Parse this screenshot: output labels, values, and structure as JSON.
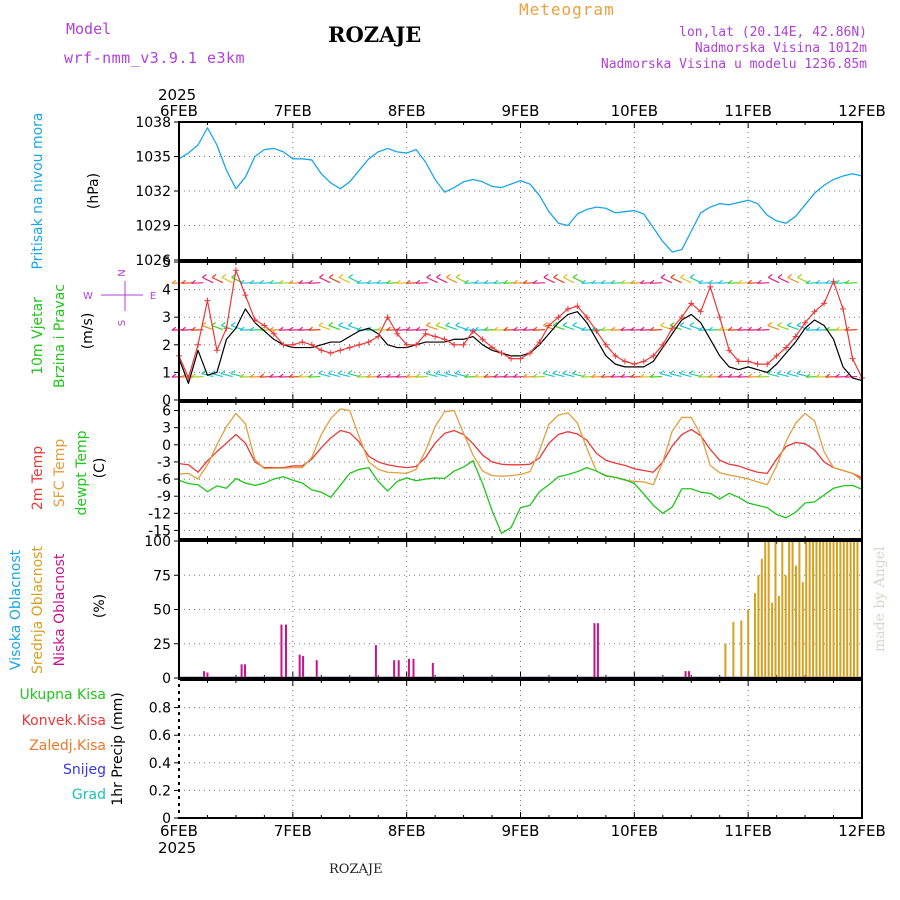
{
  "header": {
    "model_label": "Model",
    "model_name": "wrf-nmm_v3.9.1  e3km",
    "location": "ROZAJE",
    "product": "Meteogram",
    "coords": "lon,lat (20.14E, 42.86N)",
    "altitude": "Nadmorska Visina 1012m",
    "model_altitude": "Nadmorska Visina u modelu 1236.85m",
    "credit": "made by Angel",
    "footer_location": "ROZAJE"
  },
  "time_axis": {
    "year": "2025",
    "ticks": [
      "6FEB",
      "7FEB",
      "8FEB",
      "9FEB",
      "10FEB",
      "11FEB",
      "12FEB"
    ],
    "days": 6
  },
  "colors": {
    "pressure": "#1aa6e6",
    "wind_black": "#000000",
    "wind_red": "#e8393a",
    "temp2m": "#e8393a",
    "sfc": "#e0a040",
    "dew": "#22c41e",
    "cloud_high": "#1aa6e6",
    "cloud_mid": "#d6a020",
    "cloud_low": "#c8148c",
    "purple": "#b040d8",
    "orange": "#e8a040",
    "precip_total": "#22c41e",
    "precip_conv": "#e8393a",
    "precip_frz": "#f07828",
    "snow": "#3838e0",
    "hail": "#20c0b0"
  },
  "chart_data": [
    {
      "type": "line",
      "id": "pressure",
      "title": "Pritisak na nivou mora",
      "ylabel": "(hPa)",
      "ylim": [
        1026,
        1038
      ],
      "yticks": [
        1026,
        1029,
        1032,
        1035,
        1038
      ],
      "x_days": [
        0,
        0.083,
        0.167,
        0.25,
        0.333,
        0.417,
        0.5,
        0.583,
        0.667,
        0.75,
        0.833,
        0.917,
        1.0,
        1.083,
        1.167,
        1.25,
        1.333,
        1.417,
        1.5,
        1.583,
        1.667,
        1.75,
        1.833,
        1.917,
        2.0,
        2.083,
        2.167,
        2.25,
        2.333,
        2.417,
        2.5,
        2.583,
        2.667,
        2.75,
        2.833,
        2.917,
        3.0,
        3.083,
        3.167,
        3.25,
        3.333,
        3.417,
        3.5,
        3.583,
        3.667,
        3.75,
        3.833,
        3.917,
        4.0,
        4.083,
        4.167,
        4.25,
        4.333,
        4.417,
        4.5,
        4.583,
        4.667,
        4.75,
        4.833,
        4.917,
        5.0,
        5.083,
        5.167,
        5.25,
        5.333,
        5.417,
        5.5,
        5.583,
        5.667,
        5.75,
        5.833,
        5.917,
        6.0
      ],
      "series": [
        {
          "name": "MSLP",
          "values": [
            1034.8,
            1035.3,
            1036.0,
            1037.5,
            1036.0,
            1033.8,
            1032.2,
            1033.2,
            1035.0,
            1035.6,
            1035.7,
            1035.4,
            1034.8,
            1034.8,
            1034.7,
            1033.5,
            1032.7,
            1032.2,
            1032.8,
            1033.8,
            1034.8,
            1035.4,
            1035.7,
            1035.4,
            1035.3,
            1035.6,
            1034.5,
            1033.0,
            1031.9,
            1032.3,
            1032.8,
            1033.0,
            1032.8,
            1032.4,
            1032.3,
            1032.6,
            1032.9,
            1032.6,
            1031.6,
            1030.2,
            1029.2,
            1029.0,
            1030.0,
            1030.4,
            1030.6,
            1030.5,
            1030.1,
            1030.2,
            1030.3,
            1030.0,
            1028.8,
            1027.6,
            1026.7,
            1026.9,
            1028.5,
            1030.1,
            1030.6,
            1030.9,
            1030.8,
            1031.0,
            1031.2,
            1030.9,
            1029.9,
            1029.4,
            1029.2,
            1029.8,
            1030.8,
            1031.8,
            1032.5,
            1033.0,
            1033.3,
            1033.5,
            1033.3
          ]
        }
      ]
    },
    {
      "type": "line",
      "id": "wind",
      "title": [
        "10m Vjetar",
        "Brzina i Pravac"
      ],
      "ylabel": "(m/s)",
      "ylim": [
        0,
        5
      ],
      "yticks": [
        0,
        1,
        2,
        3,
        4,
        5
      ],
      "compass_labels": [
        "N",
        "W",
        "E",
        "S"
      ],
      "x_days": [
        0,
        0.083,
        0.167,
        0.25,
        0.333,
        0.417,
        0.5,
        0.583,
        0.667,
        0.75,
        0.833,
        0.917,
        1.0,
        1.083,
        1.167,
        1.25,
        1.333,
        1.417,
        1.5,
        1.583,
        1.667,
        1.75,
        1.833,
        1.917,
        2.0,
        2.083,
        2.167,
        2.25,
        2.333,
        2.417,
        2.5,
        2.583,
        2.667,
        2.75,
        2.833,
        2.917,
        3.0,
        3.083,
        3.167,
        3.25,
        3.333,
        3.417,
        3.5,
        3.583,
        3.667,
        3.75,
        3.833,
        3.917,
        4.0,
        4.083,
        4.167,
        4.25,
        4.333,
        4.417,
        4.5,
        4.583,
        4.667,
        4.75,
        4.833,
        4.917,
        5.0,
        5.083,
        5.167,
        5.25,
        5.333,
        5.417,
        5.5,
        5.583,
        5.667,
        5.75,
        5.833,
        5.917,
        6.0
      ],
      "series": [
        {
          "name": "mean",
          "values": [
            1.5,
            0.6,
            1.8,
            0.9,
            1.0,
            2.2,
            2.6,
            3.3,
            2.8,
            2.5,
            2.2,
            2.0,
            1.9,
            1.9,
            1.9,
            2.0,
            2.1,
            2.1,
            2.3,
            2.5,
            2.6,
            2.4,
            2.0,
            1.9,
            1.9,
            2.0,
            2.1,
            2.1,
            2.1,
            2.2,
            2.2,
            2.3,
            2.0,
            1.8,
            1.7,
            1.6,
            1.6,
            1.7,
            2.0,
            2.4,
            2.8,
            3.1,
            3.2,
            2.8,
            2.2,
            1.6,
            1.3,
            1.2,
            1.2,
            1.2,
            1.4,
            1.9,
            2.4,
            2.9,
            3.1,
            2.8,
            2.2,
            1.6,
            1.2,
            1.1,
            1.2,
            1.1,
            1.0,
            1.3,
            1.7,
            2.1,
            2.6,
            2.9,
            2.7,
            2.2,
            1.2,
            0.8,
            0.7
          ]
        },
        {
          "name": "gust",
          "values": [
            1.6,
            0.8,
            2.0,
            3.6,
            1.8,
            2.6,
            4.7,
            3.8,
            2.9,
            2.7,
            2.4,
            2.0,
            2.0,
            2.1,
            2.0,
            1.8,
            1.7,
            1.8,
            1.9,
            2.0,
            2.1,
            2.3,
            3.0,
            2.4,
            2.0,
            2.0,
            2.4,
            2.3,
            2.2,
            2.0,
            2.0,
            2.5,
            2.2,
            1.9,
            1.7,
            1.5,
            1.5,
            1.7,
            2.1,
            2.7,
            3.0,
            3.3,
            3.4,
            3.0,
            2.5,
            2.0,
            1.6,
            1.4,
            1.3,
            1.4,
            1.6,
            2.0,
            2.6,
            3.0,
            3.5,
            3.2,
            4.1,
            3.0,
            1.8,
            1.4,
            1.4,
            1.3,
            1.3,
            1.6,
            1.9,
            2.3,
            2.8,
            3.2,
            3.5,
            4.3,
            3.3,
            1.5,
            0.8
          ]
        }
      ]
    },
    {
      "type": "line",
      "id": "temperature",
      "title": [
        "2m Temp",
        "SFC Temp",
        "dewpt Temp"
      ],
      "ylabel": "(C)",
      "ylim": [
        -16.5,
        7.5
      ],
      "yticks": [
        -15,
        -12,
        -9,
        -6,
        -3,
        0,
        3,
        6
      ],
      "x_days": [
        0,
        0.083,
        0.167,
        0.25,
        0.333,
        0.417,
        0.5,
        0.583,
        0.667,
        0.75,
        0.833,
        0.917,
        1.0,
        1.083,
        1.167,
        1.25,
        1.333,
        1.417,
        1.5,
        1.583,
        1.667,
        1.75,
        1.833,
        1.917,
        2.0,
        2.083,
        2.167,
        2.25,
        2.333,
        2.417,
        2.5,
        2.583,
        2.667,
        2.75,
        2.833,
        2.917,
        3.0,
        3.083,
        3.167,
        3.25,
        3.333,
        3.417,
        3.5,
        3.583,
        3.667,
        3.75,
        3.833,
        3.917,
        4.0,
        4.083,
        4.167,
        4.25,
        4.333,
        4.417,
        4.5,
        4.583,
        4.667,
        4.75,
        4.833,
        4.917,
        5.0,
        5.083,
        5.167,
        5.25,
        5.333,
        5.417,
        5.5,
        5.583,
        5.667,
        5.75,
        5.833,
        5.917,
        6.0
      ],
      "series": [
        {
          "name": "2m Temp",
          "values": [
            -3.3,
            -3.5,
            -4.8,
            -2.8,
            -1.2,
            0.3,
            1.8,
            0.3,
            -3.0,
            -4.0,
            -4.0,
            -4.0,
            -3.7,
            -3.7,
            -2.5,
            -0.5,
            1.2,
            2.5,
            2.1,
            0.5,
            -2.0,
            -3.0,
            -3.5,
            -3.8,
            -4.0,
            -3.8,
            -2.2,
            0.3,
            2.0,
            2.5,
            1.8,
            0.2,
            -1.8,
            -3.0,
            -3.4,
            -3.5,
            -3.5,
            -3.4,
            -2.3,
            0.3,
            1.8,
            2.3,
            1.9,
            0.8,
            -1.5,
            -2.7,
            -3.2,
            -3.6,
            -4.2,
            -4.5,
            -4.8,
            -3.0,
            -0.2,
            1.8,
            2.7,
            1.6,
            -0.8,
            -2.7,
            -3.4,
            -3.7,
            -4.3,
            -4.8,
            -5.0,
            -2.5,
            -0.3,
            0.4,
            0.2,
            -0.9,
            -3.0,
            -4.0,
            -4.5,
            -5.0,
            -5.8
          ]
        },
        {
          "name": "SFC Temp",
          "values": [
            -5.1,
            -5.0,
            -6.0,
            -3.5,
            0.0,
            3.2,
            5.5,
            3.7,
            -2.6,
            -4.2,
            -4.1,
            -4.1,
            -4.0,
            -4.0,
            -2.2,
            1.8,
            4.6,
            6.3,
            6.0,
            1.4,
            -3.0,
            -4.3,
            -4.8,
            -4.9,
            -5.0,
            -4.3,
            -1.0,
            3.2,
            5.8,
            6.0,
            2.0,
            -1.8,
            -4.6,
            -5.4,
            -5.5,
            -5.4,
            -5.2,
            -4.7,
            -1.0,
            3.6,
            5.2,
            5.6,
            3.8,
            -0.6,
            -4.6,
            -5.5,
            -5.7,
            -6.2,
            -6.4,
            -6.5,
            -7.0,
            -3.0,
            2.4,
            4.8,
            4.8,
            1.8,
            -3.6,
            -4.9,
            -5.3,
            -5.6,
            -6.0,
            -6.5,
            -7.0,
            -3.7,
            0.6,
            3.8,
            5.5,
            4.2,
            -1.2,
            -4.0,
            -4.5,
            -5.0,
            -6.2
          ]
        },
        {
          "name": "dewpt Temp",
          "values": [
            -6.2,
            -6.8,
            -7.0,
            -8.2,
            -7.2,
            -7.6,
            -5.9,
            -6.7,
            -7.1,
            -6.7,
            -6.0,
            -5.6,
            -6.2,
            -6.7,
            -7.9,
            -8.3,
            -9.2,
            -7.1,
            -5.0,
            -4.3,
            -4.0,
            -6.4,
            -8.1,
            -6.4,
            -5.8,
            -6.3,
            -6.0,
            -5.8,
            -5.9,
            -4.6,
            -3.9,
            -2.8,
            -6.8,
            -11.5,
            -15.5,
            -14.5,
            -11.0,
            -10.6,
            -8.2,
            -7.0,
            -5.6,
            -5.2,
            -4.7,
            -4.0,
            -4.6,
            -5.4,
            -5.7,
            -6.1,
            -6.8,
            -8.6,
            -10.6,
            -12.0,
            -10.9,
            -7.7,
            -7.7,
            -8.3,
            -8.5,
            -9.5,
            -8.5,
            -9.2,
            -10.2,
            -10.6,
            -11.0,
            -12.2,
            -12.8,
            -11.8,
            -10.2,
            -10.0,
            -8.8,
            -7.6,
            -7.2,
            -7.1,
            -7.8
          ]
        }
      ]
    },
    {
      "type": "bar",
      "id": "cloud",
      "title": [
        "Visoka Oblacnost",
        "Srednja Oblacnost",
        "Niska Oblacnost"
      ],
      "ylabel": "(%)",
      "ylim": [
        0,
        100
      ],
      "yticks": [
        0,
        25,
        50,
        75,
        100
      ],
      "series": [
        {
          "name": "Niska Oblacnost",
          "x_days": [
            0.22,
            0.25,
            0.55,
            0.58,
            0.9,
            0.94,
            1.06,
            1.09,
            1.21,
            1.73,
            1.89,
            1.93,
            2.02,
            2.06,
            2.23,
            3.65,
            3.68,
            4.45,
            4.48
          ],
          "values": [
            5,
            4,
            10,
            10,
            39,
            39,
            17,
            16,
            13,
            24,
            13,
            13,
            14,
            14,
            11,
            40,
            40,
            5,
            5
          ]
        },
        {
          "name": "Srednja Oblacnost",
          "x_days": [
            4.8,
            4.87,
            4.94,
            5.0,
            5.06,
            5.09,
            5.12,
            5.15,
            5.18,
            5.21,
            5.24,
            5.27,
            5.3,
            5.33,
            5.36,
            5.39,
            5.42,
            5.45,
            5.48,
            5.51,
            5.54,
            5.57,
            5.6,
            5.63,
            5.66,
            5.69,
            5.72,
            5.75,
            5.78,
            5.81,
            5.84,
            5.87,
            5.9,
            5.93,
            5.96
          ],
          "values": [
            25,
            41,
            42,
            50,
            62,
            75,
            87,
            100,
            100,
            55,
            100,
            60,
            100,
            75,
            100,
            100,
            82,
            100,
            70,
            100,
            100,
            100,
            100,
            100,
            100,
            100,
            100,
            100,
            100,
            100,
            100,
            100,
            100,
            100,
            100
          ]
        },
        {
          "name": "Visoka Oblacnost",
          "x_days": [],
          "values": []
        }
      ]
    },
    {
      "type": "bar",
      "id": "precip",
      "title": [
        "Ukupna Kisa",
        "Konvek.Kisa",
        "Zaledj.Kisa",
        "Snijeg",
        "Grad"
      ],
      "ylabel": "1hr Precip (mm)",
      "ylim": [
        0,
        1
      ],
      "yticks": [
        0,
        0.2,
        0.4,
        0.6,
        0.8
      ],
      "series": [
        {
          "name": "Ukupna Kisa",
          "values": []
        },
        {
          "name": "Konvek.Kisa",
          "values": []
        },
        {
          "name": "Zaledj.Kisa",
          "values": []
        },
        {
          "name": "Snijeg",
          "values": []
        },
        {
          "name": "Grad",
          "values": []
        }
      ]
    }
  ]
}
